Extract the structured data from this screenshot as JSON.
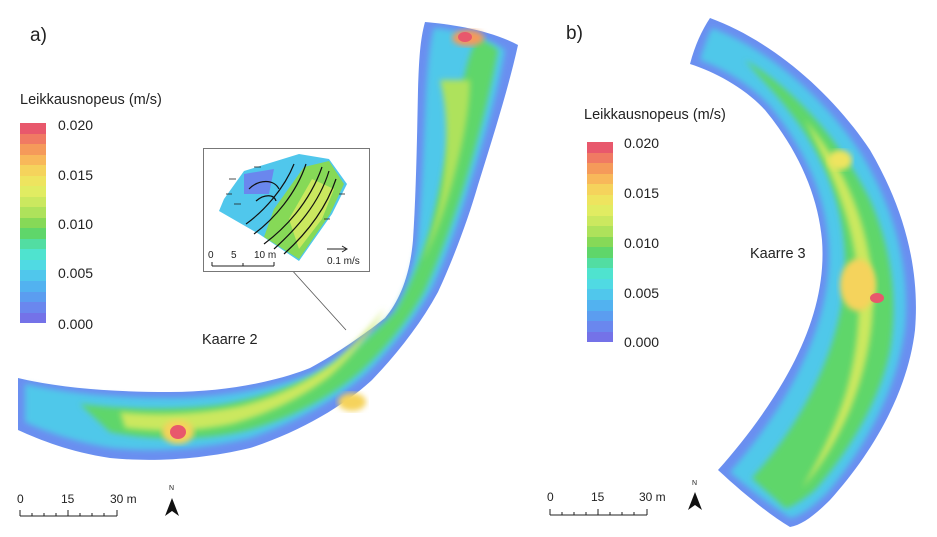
{
  "panel_a": {
    "letter": "a)",
    "legend": {
      "title": "Leikkausnopeus (m/s)",
      "ticks": [
        "0.020",
        "0.015",
        "0.010",
        "0.005",
        "0.000"
      ]
    },
    "bend_label": "Kaarre 2",
    "inset": {
      "scale_ticks": [
        "0",
        "5",
        "10 m"
      ],
      "vector_label": "0.1 m/s"
    },
    "scale_ticks": [
      "0",
      "15",
      "30 m"
    ],
    "north_label": "N"
  },
  "panel_b": {
    "letter": "b)",
    "legend": {
      "title": "Leikkausnopeus (m/s)",
      "ticks": [
        "0.020",
        "0.015",
        "0.010",
        "0.005",
        "0.000"
      ]
    },
    "bend_label": "Kaarre 3",
    "scale_ticks": [
      "0",
      "15",
      "30 m"
    ],
    "north_label": "N"
  },
  "colors": {
    "ramp": [
      "#e8586c",
      "#f07a63",
      "#f59a5a",
      "#f8b85a",
      "#f5d35c",
      "#eee45f",
      "#e1ec62",
      "#cbe85f",
      "#aee25b",
      "#86d957",
      "#5fd66a",
      "#52dda2",
      "#4fe3cf",
      "#50dae3",
      "#50c7ec",
      "#52b2f0",
      "#5b9df0",
      "#6a87ee",
      "#7472e8"
    ]
  }
}
